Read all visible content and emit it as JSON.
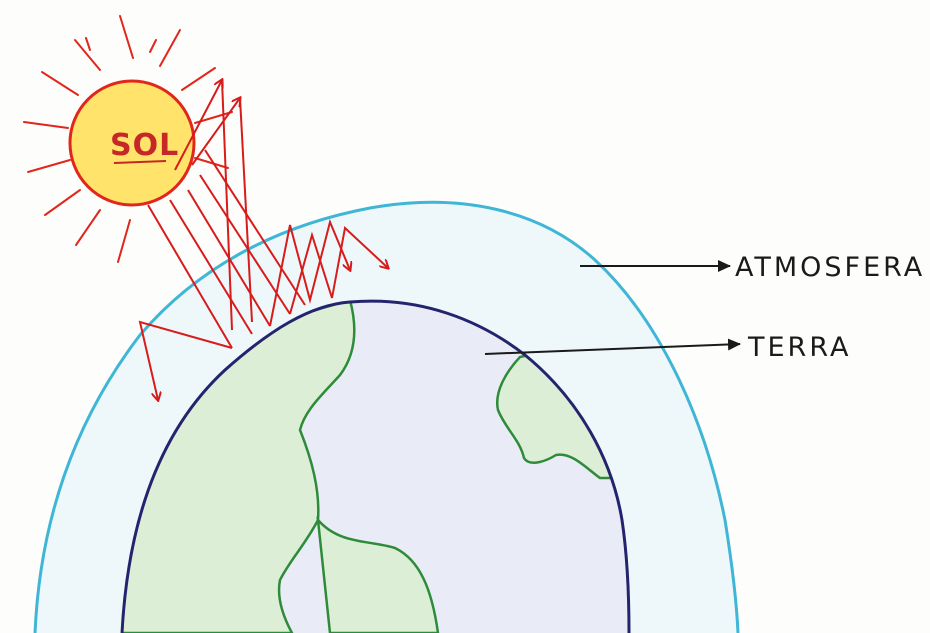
{
  "labels": {
    "sun": "SOL",
    "atmosphere": "ATMOSFERA",
    "earth": "TERRA"
  },
  "colors": {
    "paper": "#fdfdfc",
    "atmosphere_line": "#3fb6d6",
    "atmosphere_fill": "#eef8fb",
    "earth_outline": "#24246e",
    "earth_fill": "#e9ecf6",
    "land": "#dcefd6",
    "land_border": "#2e8b3a",
    "sun_fill": "#ffe36b",
    "sun_outline": "#e1261c",
    "sun_rays": "#e1261c",
    "radiation": "#d81b1b",
    "pointer": "#1a1a1a"
  },
  "icons": {
    "sun": "sun-icon",
    "earth": "earth-globe",
    "radiation": "arrow-icon"
  }
}
